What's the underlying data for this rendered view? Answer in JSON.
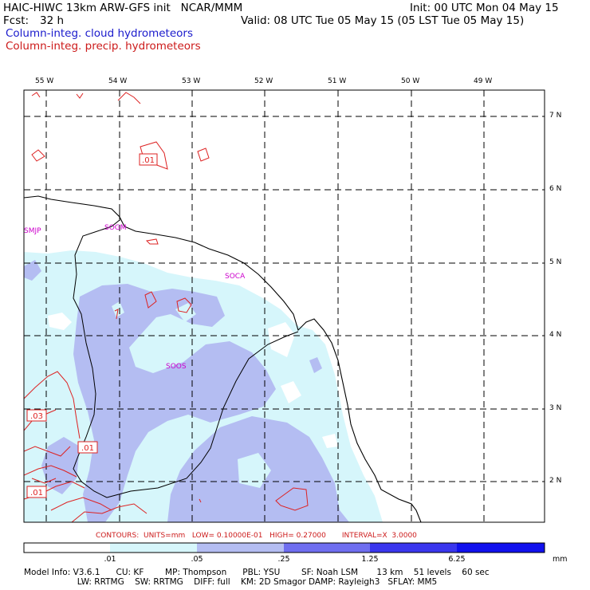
{
  "header": {
    "model_line": "HAIC-HIWC 13km ARW-GFS init   NCAR/MMM",
    "init_line": "Init: 00 UTC Mon 04 May 15",
    "fcst_label": "Fcst:",
    "fcst_value": "32 h",
    "valid_line": "Valid: 08 UTC Tue 05 May 15 (05 LST Tue 05 May 15)",
    "field_cloud": "Column-integ. cloud hydrometeors",
    "field_precip": "Column-integ. precip. hydrometeors"
  },
  "lon_labels": [
    "55 W",
    "54 W",
    "53 W",
    "52 W",
    "51 W",
    "50 W",
    "49 W"
  ],
  "lat_labels": [
    "7 N",
    "6 N",
    "5 N",
    "4 N",
    "3 N",
    "2 N"
  ],
  "stations": [
    "SMJP",
    "SOGM",
    "SOCA",
    "SOOS"
  ],
  "contour_labels": [
    ".01",
    ".03",
    ".01",
    ".01"
  ],
  "contours_line": "CONTOURS:  UNITS=mm   LOW= 0.10000E-01   HIGH= 0.27000       INTERVAL=X  3.0000",
  "colorbar": {
    "labels": [
      ".01",
      ".05",
      ".25",
      "1.25",
      "6.25"
    ],
    "unit": "mm",
    "colors": [
      "#ffffff",
      "#d6f6fb",
      "#b4bdf2",
      "#6f6ef0",
      "#3a36ee",
      "#1111ee"
    ]
  },
  "footer": {
    "line1": "Model Info: V3.6.1      CU: KF        MP: Thompson      PBL: YSU        SF: Noah LSM       13 km    51 levels    60 sec",
    "line2": "                    LW: RRTMG    SW: RRTMG    DIFF: full    KM: 2D Smagor DAMP: Rayleigh3   SFLAY: MM5"
  },
  "colors": {
    "cloud_text": "#1a1acc",
    "precip_text": "#cc1a1a",
    "station_text": "#cc00cc",
    "coast": "#000000"
  }
}
